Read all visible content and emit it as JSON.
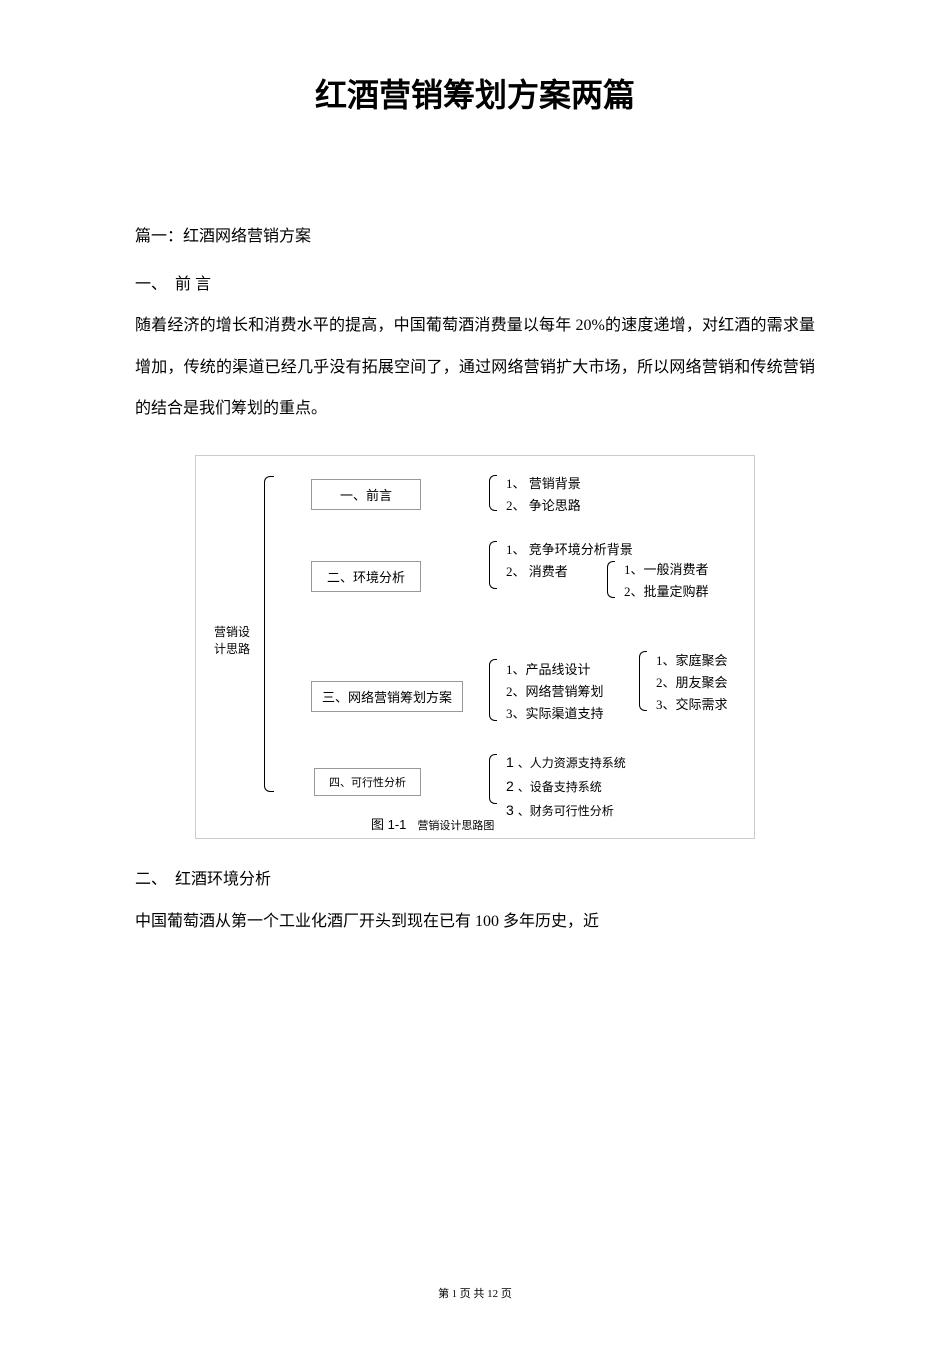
{
  "title": "红酒营销筹划方案两篇",
  "section1_heading": "篇一：红酒网络营销方案",
  "section1_sub1": "一、　前 言",
  "para1": "随着经济的增长和消费水平的提高，中国葡萄酒消费量以每年 20%的速度递增，对红酒的需求量增加，传统的渠道已经几乎没有拓展空间了，通过网络营销扩大市场，所以网络营销和传统营销的结合是我们筹划的重点。",
  "diagram": {
    "root": "营销设计思路",
    "node1": "一、前言",
    "node2": "二、环境分析",
    "node3": "三、网络营销筹划方案",
    "node4": "四、可行性分析",
    "d1_1": "1、 营销背景",
    "d1_2": "2、 争论思路",
    "d2_1": "1、 竞争环境分析背景",
    "d2_2": "2、 消费者",
    "d2b_1": "1、一般消费者",
    "d2b_2": "2、批量定购群",
    "d3_1": "1、产品线设计",
    "d3_2": "2、网络营销筹划",
    "d3_3": "3、实际渠道支持",
    "d3b_1": "1、家庭聚会",
    "d3b_2": "2、朋友聚会",
    "d3b_3": "3、交际需求",
    "d4_1": "、人力资源支持系统",
    "d4_2": "、设备支持系统",
    "d4_3": "、财务可行性分析",
    "caption": "　营销设计思路图",
    "caption_fignum": "图 1-1"
  },
  "section2_heading": "二、　红酒环境分析",
  "para2": "中国葡萄酒从第一个工业化酒厂开头到现在已有 100 多年历史，近",
  "footer": {
    "prefix": "第 ",
    "page": "1",
    "mid": " 页 共 12 页"
  }
}
